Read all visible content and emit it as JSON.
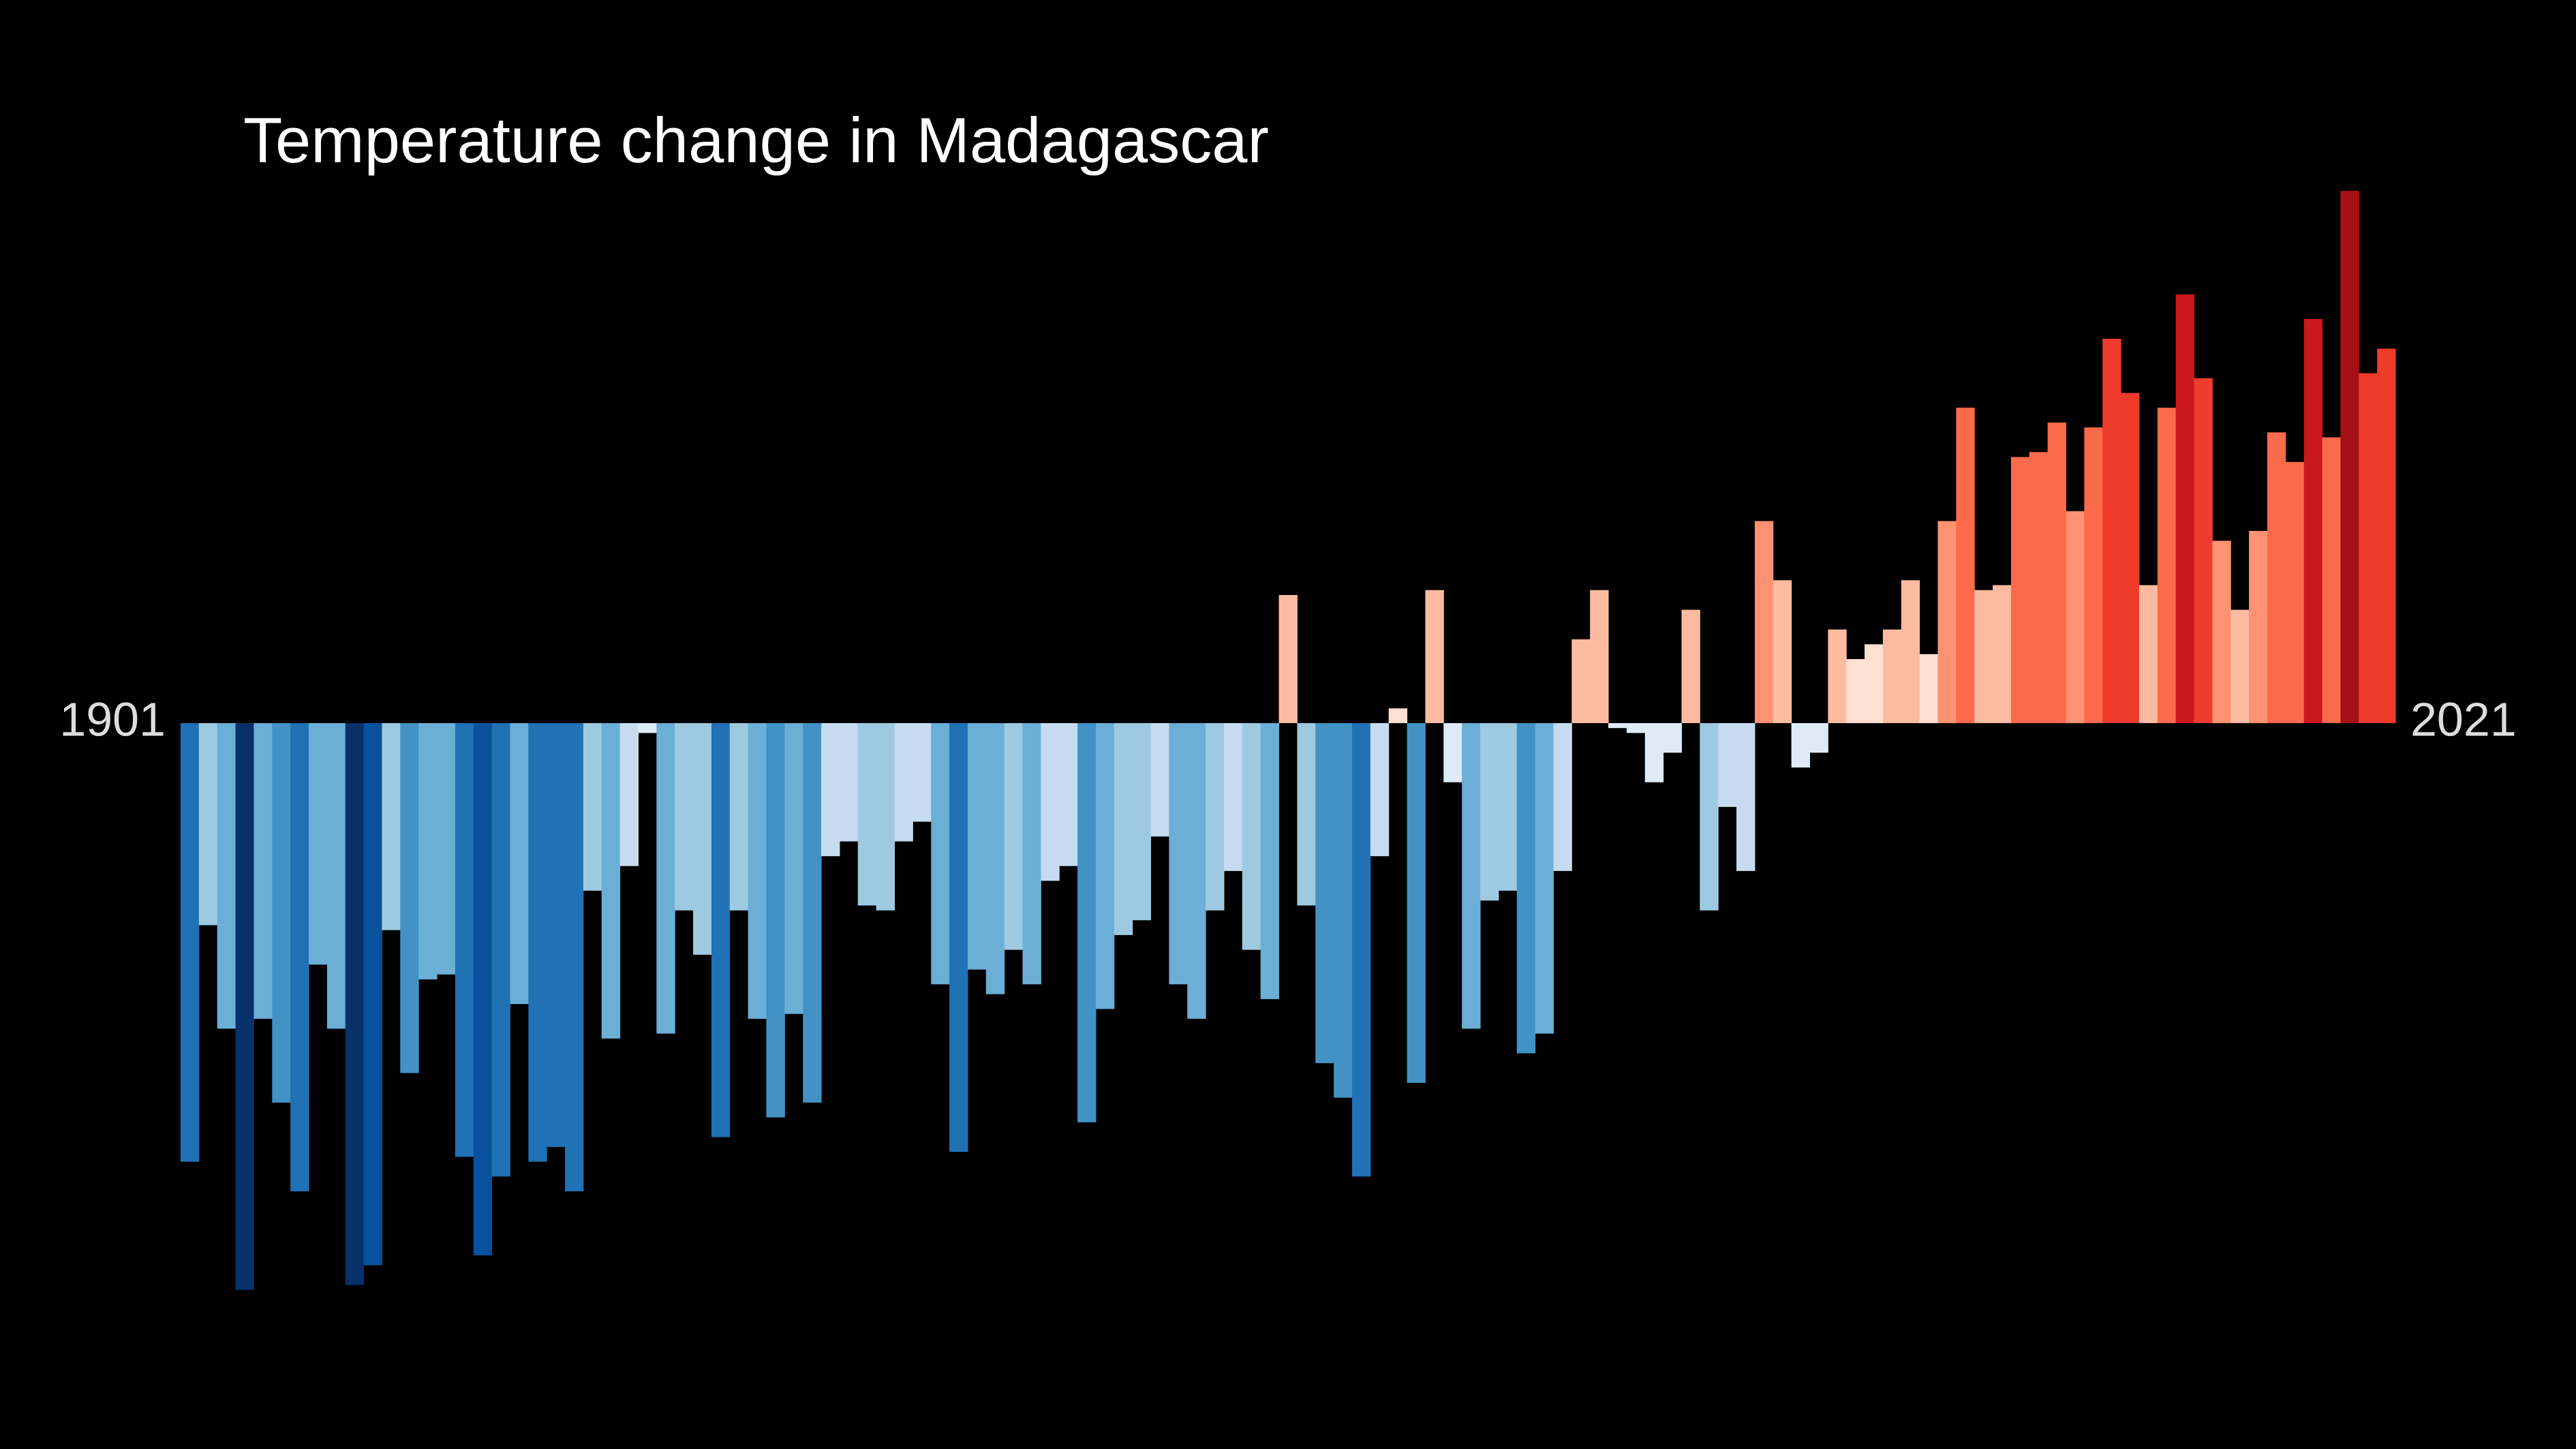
{
  "chart_data": {
    "type": "bar",
    "title": "Temperature change in Madagascar",
    "xlim": [
      1901,
      2021
    ],
    "xticks": [
      1901,
      2021
    ],
    "ylim": [
      -1.3,
      1.3
    ],
    "colormap": [
      "#08306b",
      "#08519c",
      "#2171b5",
      "#4292c6",
      "#6baed6",
      "#9ecae1",
      "#c6dbef",
      "#deebf7",
      "#fee0d2",
      "#fcbba1",
      "#fc9272",
      "#fb6a4a",
      "#ef3b2c",
      "#cb181d",
      "#a50f15",
      "#67000d"
    ],
    "values": [
      -0.89,
      -0.41,
      -0.62,
      -1.15,
      -0.6,
      -0.77,
      -0.95,
      -0.49,
      -0.62,
      -1.14,
      -1.1,
      -0.42,
      -0.71,
      -0.52,
      -0.51,
      -0.88,
      -1.08,
      -0.92,
      -0.57,
      -0.89,
      -0.86,
      -0.95,
      -0.34,
      -0.64,
      -0.29,
      -0.02,
      -0.63,
      -0.38,
      -0.47,
      -0.84,
      -0.38,
      -0.6,
      -0.8,
      -0.59,
      -0.77,
      -0.27,
      -0.24,
      -0.37,
      -0.38,
      -0.24,
      -0.2,
      -0.53,
      -0.87,
      -0.5,
      -0.55,
      -0.46,
      -0.53,
      -0.32,
      -0.29,
      -0.81,
      -0.58,
      -0.43,
      -0.4,
      -0.23,
      -0.53,
      -0.6,
      -0.38,
      -0.3,
      -0.46,
      -0.56,
      0.26,
      -0.37,
      -0.69,
      -0.76,
      -0.92,
      -0.27,
      0.03,
      -0.73,
      0.27,
      -0.12,
      -0.62,
      -0.36,
      -0.34,
      -0.67,
      -0.63,
      -0.3,
      0.17,
      0.27,
      -0.01,
      -0.02,
      -0.12,
      -0.06,
      0.23,
      -0.38,
      -0.17,
      -0.3,
      0.41,
      0.29,
      -0.09,
      -0.06,
      0.19,
      0.13,
      0.16,
      0.19,
      0.29,
      0.14,
      0.41,
      0.64,
      0.27,
      0.28,
      0.54,
      0.55,
      0.61,
      0.43,
      0.6,
      0.78,
      0.67,
      0.28,
      0.64,
      0.87,
      0.7,
      0.37,
      0.23,
      0.39,
      0.59,
      0.53,
      0.82,
      0.58,
      1.08,
      0.71,
      0.76
    ]
  }
}
